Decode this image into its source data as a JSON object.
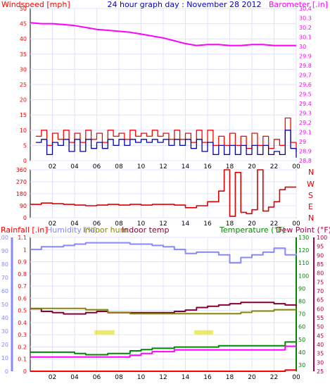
{
  "title": "24 hour graph day : November 28 2012",
  "colors": {
    "wind": "#ff0000",
    "gust": "#0000aa",
    "baro": "#ff00ff",
    "dir": "#dd0000",
    "humidity": "#8888ff",
    "indoor_hum": "#888800",
    "indoor_temp": "#880033",
    "temperature": "#008800",
    "dewpoint": "#ff00ff",
    "rainfall": "#ff0000",
    "axis_dark": "#000000",
    "grid": "#e0e0ff",
    "hum_axis": "#8888ff",
    "temp_axis": "#008800",
    "dew_axis": "#aa0044",
    "solar": "#dddd00"
  },
  "chart_data": [
    {
      "type": "line",
      "panel": "wind_baro",
      "labels": {
        "left": "Windspeed [mph]",
        "right": "Barometer [.in]"
      },
      "x_ticks": [
        "02",
        "04",
        "06",
        "08",
        "10",
        "12",
        "14",
        "16",
        "18",
        "20",
        "22",
        "00"
      ],
      "y_left": {
        "min": 0,
        "max": 50,
        "ticks": [
          "0",
          "5",
          "10",
          "15",
          "20",
          "25",
          "30",
          "35",
          "40",
          "45",
          "50"
        ]
      },
      "y_right": {
        "min": 28.8,
        "max": 30.4,
        "ticks": [
          "28.8",
          "28.9",
          "29",
          "29.1",
          "29.2",
          "29.3",
          "29.4",
          "29.5",
          "29.6",
          "29.7",
          "29.8",
          "29.9",
          "30",
          "30.1",
          "30.2",
          "30.3",
          "30.4"
        ]
      },
      "series": [
        {
          "key": "wind",
          "axis": "left",
          "x": [
            0.5,
            1,
            1.5,
            2,
            2.5,
            3,
            3.5,
            4,
            4.5,
            5,
            5.5,
            6,
            6.5,
            7,
            7.5,
            8,
            8.5,
            9,
            9.5,
            10,
            10.5,
            11,
            11.5,
            12,
            12.5,
            13,
            13.5,
            14,
            14.5,
            15,
            15.5,
            16,
            16.5,
            17,
            17.5,
            18,
            18.5,
            19,
            19.5,
            20,
            20.5,
            21,
            21.5,
            22,
            22.5,
            23,
            23.5,
            24
          ],
          "y": [
            8,
            10,
            5,
            9,
            7,
            10,
            6,
            9,
            6,
            10,
            7,
            9,
            6,
            10,
            8,
            9,
            7,
            10,
            8,
            9,
            8,
            10,
            8,
            9,
            7,
            10,
            7,
            9,
            6,
            10,
            6,
            10,
            5,
            8,
            5,
            9,
            5,
            8,
            4,
            9,
            5,
            8,
            4,
            7,
            5,
            14,
            6,
            3
          ]
        },
        {
          "key": "gust",
          "axis": "left",
          "x": [
            0.5,
            1,
            1.5,
            2,
            2.5,
            3,
            3.5,
            4,
            4.5,
            5,
            5.5,
            6,
            6.5,
            7,
            7.5,
            8,
            8.5,
            9,
            9.5,
            10,
            10.5,
            11,
            11.5,
            12,
            12.5,
            13,
            13.5,
            14,
            14.5,
            15,
            15.5,
            16,
            16.5,
            17,
            17.5,
            18,
            18.5,
            19,
            19.5,
            20,
            20.5,
            21,
            21.5,
            22,
            22.5,
            23,
            23.5,
            24
          ],
          "y": [
            6,
            7,
            2,
            6,
            5,
            7,
            3,
            7,
            3,
            7,
            4,
            6,
            4,
            7,
            5,
            7,
            5,
            7,
            6,
            7,
            6,
            7,
            6,
            7,
            5,
            7,
            5,
            7,
            4,
            7,
            3,
            6,
            2,
            5,
            2,
            5,
            2,
            5,
            2,
            5,
            2,
            5,
            2,
            3,
            2,
            10,
            4,
            1
          ]
        },
        {
          "key": "baro",
          "axis": "right",
          "x": [
            0,
            1,
            2,
            3,
            4,
            5,
            6,
            7,
            8,
            9,
            10,
            11,
            12,
            13,
            14,
            15,
            16,
            17,
            18,
            19,
            20,
            21,
            22,
            23,
            24
          ],
          "y": [
            30.25,
            30.24,
            30.24,
            30.23,
            30.22,
            30.2,
            30.18,
            30.17,
            30.16,
            30.15,
            30.13,
            30.11,
            30.09,
            30.06,
            30.03,
            30.01,
            30.02,
            30.02,
            30.01,
            30.01,
            30.02,
            30.02,
            30.01,
            30.01,
            30.01
          ]
        }
      ]
    },
    {
      "type": "line",
      "panel": "wind_direction",
      "labels": {
        "compass": [
          "N",
          "W",
          "S",
          "E",
          "N"
        ]
      },
      "x_ticks": [
        "02",
        "04",
        "06",
        "08",
        "10",
        "12",
        "14",
        "16",
        "18",
        "20",
        "22",
        "00"
      ],
      "y_left": {
        "min": 0,
        "max": 360,
        "ticks": [
          "0",
          "90",
          "180",
          "270",
          "360"
        ]
      },
      "series": [
        {
          "key": "dir",
          "axis": "left",
          "x": [
            0,
            1,
            2,
            3,
            4,
            5,
            6,
            7,
            8,
            9,
            10,
            11,
            12,
            13,
            14,
            15,
            16,
            17,
            17.5,
            18,
            18.5,
            19,
            19.5,
            20,
            20.5,
            21,
            21.5,
            22,
            22.5,
            23,
            24
          ],
          "y": [
            100,
            110,
            105,
            100,
            95,
            90,
            95,
            100,
            95,
            100,
            95,
            100,
            100,
            95,
            75,
            90,
            120,
            200,
            360,
            10,
            340,
            40,
            30,
            60,
            360,
            50,
            80,
            120,
            210,
            230,
            230
          ]
        }
      ]
    },
    {
      "type": "line",
      "panel": "temp_hum",
      "labels": {
        "rainfall": "Rainfall [.in]",
        "humidity": "Humidity (%)",
        "indoor_hum": "Indoor hum",
        "indoor_temp": "Indoor temp",
        "temperature": "Temperature (°F)",
        "dewpoint": "Dew Point (°F)"
      },
      "x_ticks": [
        "02",
        "04",
        "06",
        "08",
        "10",
        "12",
        "14",
        "16",
        "18",
        "20",
        "22",
        "00"
      ],
      "y_rain": {
        "min": 0,
        "max": 1.1,
        "ticks": [
          "0",
          "0.1",
          "0.2",
          "0.3",
          "0.4",
          "0.5",
          "0.6",
          "0.7",
          "0.8",
          "0.9",
          "1",
          "1.1"
        ]
      },
      "y_humidity": {
        "min": 0,
        "max": 100,
        "ticks": [
          "0",
          "10",
          "20",
          "30",
          "40",
          "50",
          "60",
          "70",
          "80",
          "90",
          "100"
        ]
      },
      "y_temp": {
        "min": 25,
        "max": 130,
        "ticks": [
          "30",
          "40",
          "50",
          "60",
          "70",
          "80",
          "90",
          "100",
          "110",
          "120",
          "130"
        ]
      },
      "y_dew": {
        "min": 25,
        "max": 100,
        "ticks": [
          "25",
          "30",
          "35",
          "40",
          "45",
          "50",
          "55",
          "60",
          "65",
          "70",
          "75",
          "80",
          "85",
          "90",
          "95",
          "100"
        ]
      },
      "series": [
        {
          "key": "humidity",
          "axis": "humidity",
          "x": [
            0,
            1,
            2,
            3,
            4,
            5,
            6,
            7,
            8,
            9,
            10,
            11,
            12,
            13,
            14,
            15,
            16,
            17,
            18,
            19,
            20,
            21,
            22,
            23,
            24
          ],
          "y": [
            91,
            93,
            93,
            94,
            95,
            96,
            96,
            96,
            96,
            95,
            95,
            94,
            93,
            91,
            88,
            89,
            89,
            87,
            81,
            85,
            87,
            89,
            92,
            87,
            88
          ]
        },
        {
          "key": "indoor_temp",
          "axis": "temp",
          "x": [
            0,
            1,
            2,
            3,
            4,
            5,
            6,
            7,
            8,
            9,
            10,
            11,
            12,
            13,
            14,
            15,
            16,
            17,
            18,
            19,
            20,
            21,
            22,
            23,
            24
          ],
          "y": [
            74,
            72,
            71,
            70,
            70,
            71,
            72,
            71,
            71,
            71,
            71,
            71,
            71,
            72,
            73,
            75,
            76,
            77,
            78,
            79,
            79,
            79,
            78,
            77,
            76
          ]
        },
        {
          "key": "indoor_hum",
          "axis": "humidity",
          "x": [
            0,
            1,
            2,
            3,
            4,
            5,
            6,
            7,
            8,
            9,
            10,
            11,
            12,
            13,
            14,
            15,
            16,
            17,
            18,
            19,
            20,
            21,
            22,
            23,
            24
          ],
          "y": [
            47,
            47,
            47,
            47,
            47,
            46,
            46,
            44,
            44,
            43,
            43,
            43,
            43,
            43,
            43,
            43,
            43,
            43,
            43,
            44,
            45,
            45,
            46,
            46,
            46
          ]
        },
        {
          "key": "temperature",
          "axis": "temp",
          "x": [
            0,
            1,
            2,
            3,
            4,
            5,
            6,
            7,
            8,
            9,
            10,
            11,
            12,
            13,
            14,
            15,
            16,
            17,
            18,
            19,
            20,
            21,
            22,
            23,
            24
          ],
          "y": [
            40,
            40,
            40,
            40,
            39,
            38,
            38,
            39,
            39,
            41,
            42,
            43,
            43,
            44,
            44,
            44,
            44,
            45,
            45,
            45,
            45,
            45,
            45,
            48,
            48
          ]
        },
        {
          "key": "dewpoint",
          "axis": "dew",
          "x": [
            0,
            1,
            2,
            3,
            4,
            5,
            6,
            7,
            8,
            9,
            10,
            11,
            12,
            13,
            14,
            15,
            16,
            17,
            18,
            19,
            20,
            21,
            22,
            23,
            24
          ],
          "y": [
            33,
            33,
            33,
            33,
            33,
            33,
            33,
            33,
            33,
            34,
            35,
            36,
            36,
            37,
            37,
            37,
            37,
            37,
            37,
            37,
            37,
            37,
            37,
            39,
            39
          ]
        },
        {
          "key": "rainfall",
          "axis": "rain",
          "x": [
            0,
            22.9,
            23.0,
            24
          ],
          "y": [
            0,
            0,
            0.01,
            0.01
          ]
        }
      ],
      "solar_bars": [
        {
          "x_start": 5.8,
          "x_end": 7.6,
          "y": 0.32
        },
        {
          "x_start": 14.8,
          "x_end": 16.5,
          "y": 0.32
        }
      ]
    }
  ]
}
